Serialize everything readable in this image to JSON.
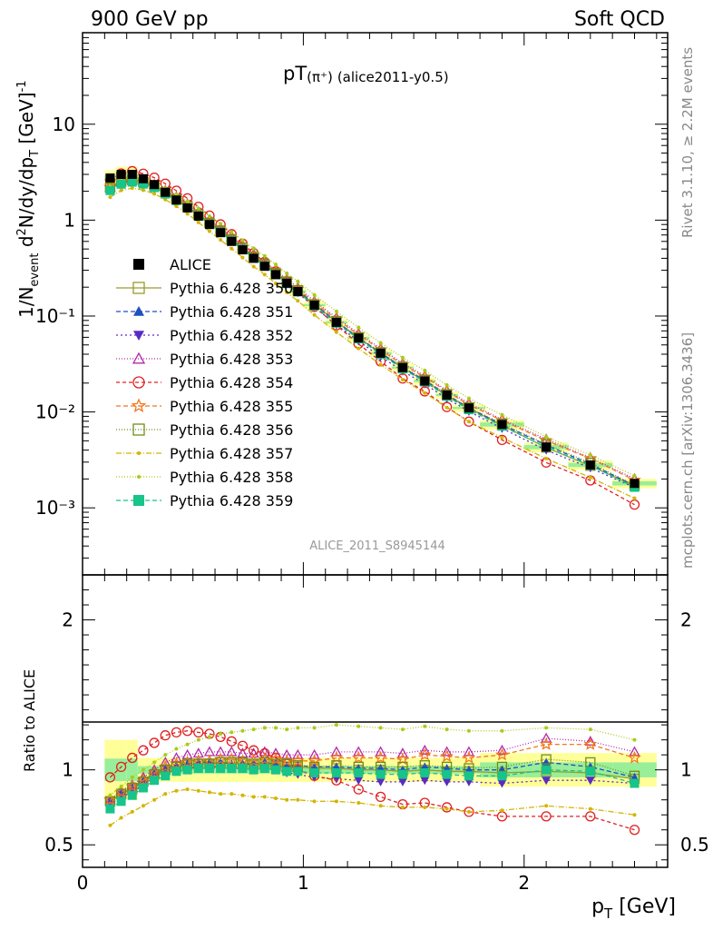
{
  "header": {
    "left": "900 GeV pp",
    "right": "Soft QCD"
  },
  "side_text": {
    "rivet": "Rivet 3.1.10, ≥ 2.2M events",
    "mcplots": "mcplots.cern.ch [arXiv:1306.3436]"
  },
  "title": {
    "main": "pT",
    "particle": "(π⁺)",
    "ref": "(alice2011-y0.5)"
  },
  "analysis_id": "ALICE_2011_S8945144",
  "chart_data": {
    "type": "line",
    "x": [
      0.125,
      0.175,
      0.225,
      0.275,
      0.325,
      0.375,
      0.425,
      0.475,
      0.525,
      0.575,
      0.625,
      0.675,
      0.725,
      0.775,
      0.825,
      0.875,
      0.925,
      0.975,
      1.05,
      1.15,
      1.25,
      1.35,
      1.45,
      1.55,
      1.65,
      1.75,
      1.9,
      2.1,
      2.3,
      2.5
    ],
    "xlabel": "p_T [GeV]",
    "xlim": [
      0,
      2.65
    ],
    "xticks": [
      "0",
      "1",
      "2"
    ],
    "top_panel": {
      "ylabel": "1/N_event d²N/dy/dp_T [GeV]⁻¹",
      "yscale": "log",
      "ylim": [
        0.0002,
        90
      ],
      "yticks": [
        "10⁻³",
        "10⁻²",
        "10⁻¹",
        "1",
        "10"
      ]
    },
    "bottom_panel": {
      "ylabel": "Ratio to ALICE",
      "ylim": [
        0.35,
        2.3
      ],
      "yticks": [
        "0.5",
        "1",
        "2"
      ]
    },
    "data": {
      "name": "ALICE",
      "values": [
        2.75,
        3.0,
        3.0,
        2.7,
        2.35,
        1.95,
        1.62,
        1.34,
        1.1,
        0.9,
        0.74,
        0.6,
        0.49,
        0.4,
        0.33,
        0.27,
        0.22,
        0.18,
        0.13,
        0.086,
        0.059,
        0.041,
        0.029,
        0.021,
        0.015,
        0.011,
        0.0074,
        0.0043,
        0.0028,
        0.0018
      ],
      "band_inner": 0.025,
      "band_outer": 0.08
    },
    "series": [
      {
        "name": "Pythia 6.428 350",
        "color": "#9a9a2e",
        "marker": "square-open",
        "dash": "solid",
        "ratio": [
          0.79,
          0.84,
          0.87,
          0.92,
          0.97,
          1.0,
          1.02,
          1.03,
          1.04,
          1.04,
          1.05,
          1.04,
          1.04,
          1.03,
          1.04,
          1.03,
          1.02,
          1.02,
          1.01,
          1.01,
          1.0,
          1.0,
          0.99,
          1.0,
          0.99,
          0.99,
          0.98,
          0.99,
          0.98,
          0.94
        ]
      },
      {
        "name": "Pythia 6.428 351",
        "color": "#1f4fc0",
        "marker": "triangle-up",
        "dash": "5,3",
        "ratio": [
          0.8,
          0.85,
          0.88,
          0.93,
          0.98,
          1.01,
          1.03,
          1.04,
          1.05,
          1.05,
          1.05,
          1.04,
          1.04,
          1.04,
          1.05,
          1.04,
          1.03,
          1.03,
          1.02,
          1.02,
          1.01,
          1.01,
          1.0,
          1.02,
          1.01,
          1.0,
          1.0,
          1.05,
          1.02,
          0.95
        ]
      },
      {
        "name": "Pythia 6.428 352",
        "color": "#5a2bc2",
        "marker": "triangle-down",
        "dash": "2,3",
        "ratio": [
          0.77,
          0.82,
          0.85,
          0.9,
          0.95,
          0.98,
          1.0,
          1.01,
          1.02,
          1.02,
          1.02,
          1.01,
          1.01,
          1.0,
          1.01,
          1.0,
          0.98,
          0.97,
          0.95,
          0.94,
          0.93,
          0.92,
          0.92,
          0.93,
          0.92,
          0.92,
          0.91,
          0.93,
          0.93,
          0.91
        ]
      },
      {
        "name": "Pythia 6.428 353",
        "color": "#b22aaa",
        "marker": "triangle-open",
        "dash": "1,2",
        "ratio": [
          0.8,
          0.86,
          0.9,
          0.95,
          1.0,
          1.05,
          1.08,
          1.1,
          1.11,
          1.12,
          1.12,
          1.12,
          1.11,
          1.11,
          1.12,
          1.11,
          1.1,
          1.1,
          1.1,
          1.12,
          1.12,
          1.12,
          1.11,
          1.13,
          1.12,
          1.12,
          1.13,
          1.21,
          1.19,
          1.12
        ]
      },
      {
        "name": "Pythia 6.428 354",
        "color": "#e02020",
        "marker": "circle-open",
        "dash": "4,3",
        "ratio": [
          0.95,
          1.02,
          1.08,
          1.13,
          1.18,
          1.23,
          1.25,
          1.26,
          1.25,
          1.24,
          1.22,
          1.19,
          1.16,
          1.13,
          1.11,
          1.08,
          1.04,
          1.0,
          0.96,
          0.93,
          0.87,
          0.82,
          0.77,
          0.78,
          0.75,
          0.72,
          0.69,
          0.69,
          0.69,
          0.6
        ]
      },
      {
        "name": "Pythia 6.428 355",
        "color": "#f07820",
        "marker": "star-open",
        "dash": "5,3",
        "ratio": [
          0.8,
          0.85,
          0.89,
          0.93,
          0.98,
          1.02,
          1.04,
          1.05,
          1.06,
          1.06,
          1.07,
          1.07,
          1.06,
          1.06,
          1.07,
          1.07,
          1.06,
          1.06,
          1.06,
          1.08,
          1.08,
          1.08,
          1.07,
          1.1,
          1.09,
          1.08,
          1.1,
          1.17,
          1.17,
          1.08
        ]
      },
      {
        "name": "Pythia 6.428 356",
        "color": "#6f8f1a",
        "marker": "square-open",
        "dash": "1,2",
        "ratio": [
          0.79,
          0.84,
          0.88,
          0.92,
          0.97,
          1.0,
          1.02,
          1.04,
          1.04,
          1.04,
          1.05,
          1.05,
          1.05,
          1.04,
          1.05,
          1.04,
          1.04,
          1.03,
          1.02,
          1.03,
          1.02,
          1.02,
          1.02,
          1.03,
          1.02,
          1.01,
          1.02,
          1.07,
          1.05,
          0.96
        ]
      },
      {
        "name": "Pythia 6.428 357",
        "color": "#d4b400",
        "marker": "dot",
        "dash": "6,2,1,2",
        "ratio": [
          0.63,
          0.68,
          0.72,
          0.76,
          0.8,
          0.84,
          0.86,
          0.87,
          0.86,
          0.85,
          0.84,
          0.84,
          0.83,
          0.82,
          0.82,
          0.81,
          0.8,
          0.8,
          0.79,
          0.79,
          0.78,
          0.76,
          0.75,
          0.75,
          0.74,
          0.72,
          0.73,
          0.76,
          0.74,
          0.7
        ]
      },
      {
        "name": "Pythia 6.428 358",
        "color": "#a8cc1a",
        "marker": "dot",
        "dash": "1,2",
        "ratio": [
          0.83,
          0.89,
          0.95,
          1.0,
          1.05,
          1.1,
          1.14,
          1.17,
          1.2,
          1.22,
          1.24,
          1.25,
          1.26,
          1.27,
          1.28,
          1.28,
          1.27,
          1.28,
          1.28,
          1.3,
          1.29,
          1.28,
          1.27,
          1.29,
          1.27,
          1.26,
          1.26,
          1.28,
          1.27,
          1.2
        ]
      },
      {
        "name": "Pythia 6.428 359",
        "color": "#17c48a",
        "marker": "square",
        "dash": "5,3",
        "ratio": [
          0.74,
          0.79,
          0.83,
          0.88,
          0.93,
          0.96,
          0.99,
          1.0,
          1.01,
          1.01,
          1.01,
          1.01,
          1.01,
          1.0,
          1.01,
          1.0,
          0.99,
          0.99,
          0.98,
          0.98,
          0.98,
          0.97,
          0.97,
          0.98,
          0.97,
          0.96,
          0.96,
          1.0,
          0.99,
          0.91
        ]
      }
    ],
    "legend": {
      "placement": "lower-left"
    }
  }
}
